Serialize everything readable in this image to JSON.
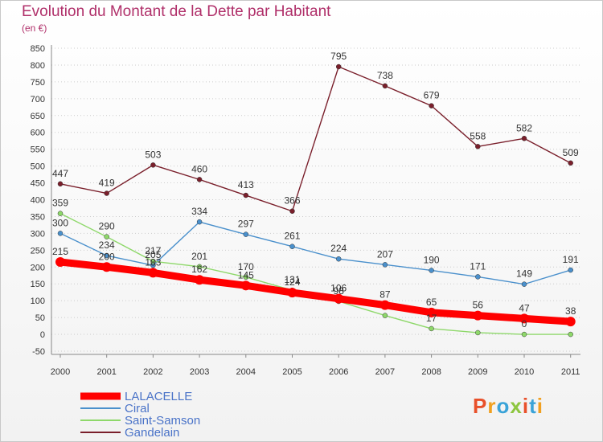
{
  "chart_data": {
    "type": "line",
    "title": "Evolution du Montant de la Dette par Habitant",
    "subtitle": "(en €)",
    "x": [
      "2000",
      "2001",
      "2002",
      "2003",
      "2004",
      "2005",
      "2006",
      "2007",
      "2008",
      "2009",
      "2010",
      "2011"
    ],
    "ylim": [
      -50,
      850
    ],
    "yticks": [
      -50,
      0,
      50,
      100,
      150,
      200,
      250,
      300,
      350,
      400,
      450,
      500,
      550,
      600,
      650,
      700,
      750,
      800,
      850
    ],
    "grid": "horizontal-dotted",
    "legend_position": "bottom-left",
    "series": [
      {
        "name": "Gandelain",
        "color": "#7a1f2b",
        "values": [
          447,
          419,
          503,
          460,
          413,
          366,
          795,
          738,
          679,
          558,
          582,
          509
        ]
      },
      {
        "name": "Ciral",
        "color": "#4a90cc",
        "values": [
          300,
          234,
          205,
          334,
          297,
          261,
          224,
          207,
          190,
          171,
          149,
          191
        ]
      },
      {
        "name": "Saint-Samson",
        "color": "#8ed86a",
        "values": [
          359,
          290,
          217,
          201,
          170,
          131,
          98,
          56,
          17,
          5,
          0,
          0
        ]
      },
      {
        "name": "LALACELLE",
        "color": "#ff0000",
        "values": [
          215,
          200,
          183,
          162,
          145,
          124,
          106,
          87,
          65,
          56,
          47,
          38
        ]
      }
    ],
    "data_labels": {
      "Gandelain": [
        "447",
        "419",
        "503",
        "460",
        "413",
        "366",
        "795",
        "738",
        "679",
        "558",
        "582",
        "509"
      ],
      "Ciral": [
        "300",
        "234",
        "205",
        "334",
        "297",
        "261",
        "224",
        "207",
        "190",
        "171",
        "149",
        "191"
      ],
      "Saint-Samson": [
        "359",
        "290",
        "217",
        "201",
        "170",
        "131",
        "98",
        "",
        "17",
        "",
        "0",
        ""
      ],
      "LALACELLE": [
        "215",
        "200",
        "183",
        "162",
        "145",
        "124",
        "106",
        "87",
        "65",
        "56",
        "47",
        "38"
      ]
    }
  },
  "legend": [
    "LALACELLE",
    "Ciral",
    "Saint-Samson",
    "Gandelain"
  ],
  "logo": {
    "text": "Proxiti",
    "colors": [
      "#e8502a",
      "#f0a020",
      "#3aa3d8",
      "#8dc63f",
      "#e8502a",
      "#3aa3d8",
      "#f0a020"
    ]
  }
}
